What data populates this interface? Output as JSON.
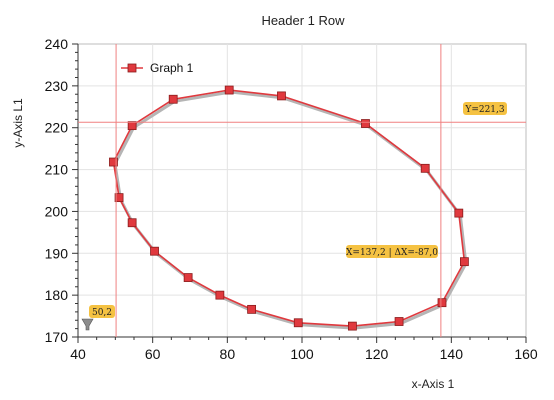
{
  "chart_data": {
    "type": "scatter",
    "title": "Header 1 Row",
    "xlabel": "x-Axis 1",
    "ylabel": "y-Axis L1",
    "xlim": [
      40,
      160
    ],
    "ylim": [
      170,
      240
    ],
    "xticks": [
      40,
      60,
      80,
      100,
      120,
      140,
      160
    ],
    "yticks": [
      170,
      180,
      190,
      200,
      210,
      220,
      230,
      240
    ],
    "grid": true,
    "legend_position": "top-left",
    "series": [
      {
        "name": "Graph 1",
        "color": "#e0393e",
        "marker": "square",
        "points": [
          {
            "x": 49.5,
            "y": 211.8
          },
          {
            "x": 54.5,
            "y": 220.5
          },
          {
            "x": 65.5,
            "y": 226.8
          },
          {
            "x": 80.5,
            "y": 229.0
          },
          {
            "x": 94.5,
            "y": 227.6
          },
          {
            "x": 117.0,
            "y": 221.0
          },
          {
            "x": 133.0,
            "y": 210.3
          },
          {
            "x": 142.0,
            "y": 199.6
          },
          {
            "x": 143.5,
            "y": 188.0
          },
          {
            "x": 137.5,
            "y": 178.2
          },
          {
            "x": 126.0,
            "y": 173.7
          },
          {
            "x": 113.5,
            "y": 172.6
          },
          {
            "x": 99.0,
            "y": 173.4
          },
          {
            "x": 86.5,
            "y": 176.6
          },
          {
            "x": 78.0,
            "y": 180.0
          },
          {
            "x": 69.5,
            "y": 184.2
          },
          {
            "x": 60.5,
            "y": 190.5
          },
          {
            "x": 54.5,
            "y": 197.3
          },
          {
            "x": 51.0,
            "y": 203.3
          }
        ]
      }
    ],
    "cursors": {
      "vertical_x": [
        50.2,
        137.2
      ],
      "horizontal_y": 221.3,
      "color": "#f08080",
      "labels": {
        "left": "50,2",
        "y": "Y=221,3",
        "x": "X=137,2 | ΔX=-87,0"
      },
      "label_color": "#f5c242"
    }
  }
}
